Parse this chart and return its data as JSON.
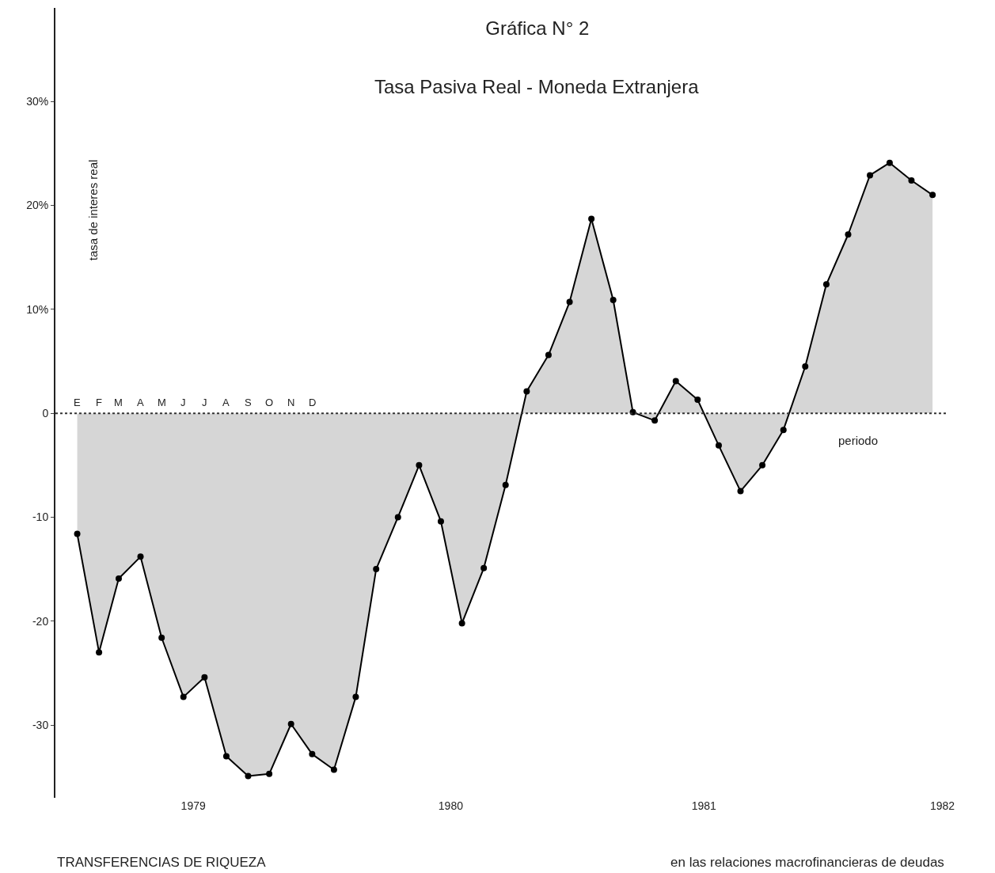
{
  "chart_data": {
    "type": "area",
    "title": "Gráfica N° 2",
    "subtitle": "Tasa Pasiva Real - Moneda Extranjera",
    "xlabel": "periodo",
    "ylabel": "tasa de interes real",
    "annotations": [
      "TRANSFERENCIAS DE RIQUEZA",
      "en las relaciones macrofinancieras de deudas",
      {
        "text": "E",
        "x": "1979-01",
        "y": 0
      },
      {
        "text": "F",
        "x": "1979-02",
        "y": 0
      },
      {
        "text": "M",
        "x": "1979-03",
        "y": 0
      },
      {
        "text": "A",
        "x": "1979-04",
        "y": 0
      },
      {
        "text": "M",
        "x": "1979-05",
        "y": 0
      },
      {
        "text": "J",
        "x": "1979-06",
        "y": 0
      },
      {
        "text": "J",
        "x": "1979-07",
        "y": 0
      },
      {
        "text": "A",
        "x": "1979-08",
        "y": 0
      },
      {
        "text": "S",
        "x": "1979-09",
        "y": 0
      },
      {
        "text": "O",
        "x": "1979-10",
        "y": 0
      },
      {
        "text": "N",
        "x": "1979-11",
        "y": 0
      },
      {
        "text": "D",
        "x": "1979-12",
        "y": 0
      }
    ],
    "x": [
      "1979-01",
      "1979-02",
      "1979-03",
      "1979-04",
      "1979-05",
      "1979-06",
      "1979-07",
      "1979-08",
      "1979-09",
      "1979-10",
      "1979-11",
      "1979-12",
      "1980-01",
      "1980-02",
      "1980-03",
      "1980-04",
      "1980-05",
      "1980-06",
      "1980-07",
      "1980-08",
      "1980-09",
      "1980-10",
      "1980-11",
      "1980-12",
      "1981-01",
      "1981-02",
      "1981-03",
      "1981-04",
      "1981-05",
      "1981-06",
      "1981-07",
      "1981-08",
      "1981-09",
      "1981-10",
      "1981-11",
      "1981-12",
      "1982-01",
      "1982-02",
      "1982-03",
      "1982-04",
      "1982-05"
    ],
    "series": [
      {
        "color": "#000000",
        "values": [
          -11.6,
          -23.0,
          -15.9,
          -13.8,
          -21.6,
          -27.3,
          -25.4,
          -33.0,
          -34.9,
          -34.7,
          -29.9,
          -32.8,
          -34.3,
          -27.3,
          -15.0,
          -10.0,
          -5.0,
          -10.4,
          -20.2,
          -14.9,
          -6.9,
          2.1,
          5.6,
          10.7,
          18.7,
          10.9,
          0.1,
          -0.7,
          3.1,
          1.3,
          -3.1,
          -7.5,
          -5.0,
          -1.6,
          4.5,
          12.4,
          17.2,
          22.9,
          24.1,
          22.4,
          21.0
        ]
      }
    ],
    "xlim": [
      "1978-12-01",
      "1982-05-20"
    ],
    "xticks": [
      {
        "value": "1979-06-15",
        "label": "1979"
      },
      {
        "value": "1980-06-15",
        "label": "1980"
      },
      {
        "value": "1981-06-10",
        "label": "1981"
      },
      {
        "value": "1982-05-15",
        "label": "1982"
      }
    ],
    "ylim": [
      -37,
      39
    ],
    "yticks": [
      {
        "value": -30,
        "label": "-30"
      },
      {
        "value": -20,
        "label": "-20"
      },
      {
        "value": -10,
        "label": "-10"
      },
      {
        "value": 0,
        "label": "0"
      },
      {
        "value": 10,
        "label": "10%"
      },
      {
        "value": 20,
        "label": "20%"
      },
      {
        "value": 30,
        "label": "30%"
      }
    ],
    "ref_lines": [
      {
        "axis": "y",
        "value": 0,
        "color": "#333333",
        "line_style": "dotted"
      }
    ],
    "grid": false,
    "marker": "circle",
    "line_style": "solid"
  }
}
